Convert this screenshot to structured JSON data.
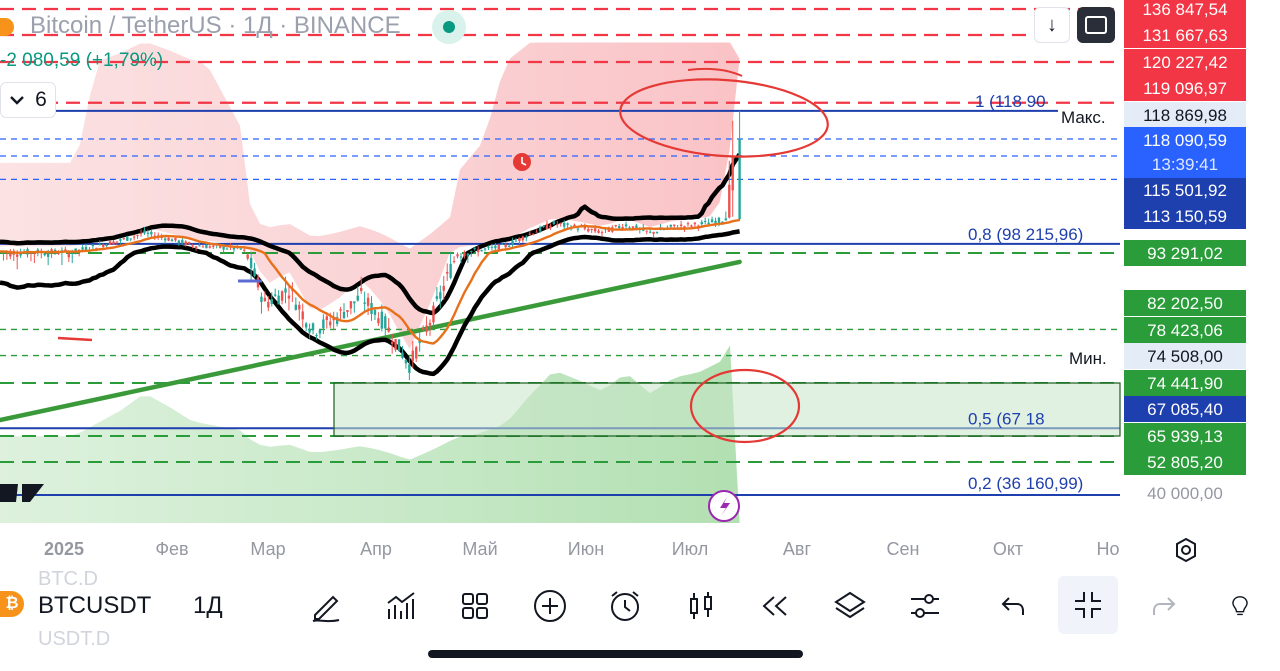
{
  "header": {
    "title": "Bitcoin / TetherUS · 1Д · BINANCE",
    "change": "-2 080,59 (+1,79%)",
    "indicators_count": "6"
  },
  "toolbar": {
    "symbol": "BTCUSDT",
    "interval": "1Д",
    "ghost_above": "BTC.D",
    "ghost_below": "USDT.D",
    "icons": [
      "pencil-icon",
      "chart-up-icon",
      "grid-icon",
      "plus-circle-icon",
      "alarm-icon",
      "candles-icon",
      "rewind-icon",
      "layers-icon",
      "sliders-icon",
      "undo-icon",
      "collapse-icon",
      "redo-icon",
      "bulb-icon"
    ]
  },
  "colors": {
    "red_level": "#f23645",
    "green_level": "#2a9d3a",
    "blue_fib": "#1e3fae",
    "candle_up": "#26a69a",
    "candle_down": "#ef5350",
    "ema": "#e8701a",
    "trend": "#3a9a3a"
  },
  "chart_data": {
    "type": "candlestick",
    "symbol": "BTCUSDT",
    "exchange": "BINANCE",
    "interval": "1Д",
    "x_labels": [
      "2025",
      "Фев",
      "Мар",
      "Апр",
      "Май",
      "Июн",
      "Июл",
      "Авг",
      "Сен",
      "Окт",
      "Но"
    ],
    "price_scale_labels": [
      "136 847,54",
      "131 667,63",
      "120 227,42",
      "119 096,97",
      "118 869,98",
      "118 090,59",
      "115 501,92",
      "113 150,59",
      "93 291,02",
      "82 202,50",
      "78 423,06",
      "74 508,00",
      "74 441,90",
      "67 085,40",
      "65 939,13",
      "52 805,20",
      "40 000,00"
    ],
    "countdown": "13:39:41",
    "max_label": "Макс.",
    "min_label": "Мин.",
    "fib_levels": [
      {
        "label": "1 (118 90"
      },
      {
        "label": "0,8 (98 215,96)"
      },
      {
        "label": "0,5 (67 18"
      },
      {
        "label": "0,2 (36 160,99)"
      }
    ],
    "red_levels": [
      136847.54,
      131667.63,
      120227.42,
      119096.97
    ],
    "green_levels": [
      93291.02,
      82202.5,
      78423.06,
      74441.9,
      65939.13,
      52805.2
    ],
    "current_price": 118090.59,
    "price_high": 118869.98,
    "price_low": 74508.0,
    "close_path": [
      [
        "2025-01-01",
        94000
      ],
      [
        "2025-01-08",
        97000
      ],
      [
        "2025-01-15",
        100000
      ],
      [
        "2025-01-22",
        104000
      ],
      [
        "2025-01-29",
        101000
      ],
      [
        "2025-02-05",
        97500
      ],
      [
        "2025-02-12",
        96500
      ],
      [
        "2025-02-19",
        95500
      ],
      [
        "2025-02-26",
        86000
      ],
      [
        "2025-03-05",
        88000
      ],
      [
        "2025-03-12",
        82000
      ],
      [
        "2025-03-19",
        84000
      ],
      [
        "2025-03-26",
        87000
      ],
      [
        "2025-04-02",
        83000
      ],
      [
        "2025-04-09",
        77000
      ],
      [
        "2025-04-16",
        84500
      ],
      [
        "2025-04-23",
        93500
      ],
      [
        "2025-04-30",
        95000
      ],
      [
        "2025-05-07",
        97000
      ],
      [
        "2025-05-14",
        103500
      ],
      [
        "2025-05-21",
        109000
      ],
      [
        "2025-05-28",
        107000
      ],
      [
        "2025-06-04",
        104500
      ],
      [
        "2025-06-11",
        108500
      ],
      [
        "2025-06-18",
        104000
      ],
      [
        "2025-06-25",
        107500
      ],
      [
        "2025-07-02",
        108500
      ],
      [
        "2025-07-09",
        111000
      ],
      [
        "2025-07-14",
        118090
      ]
    ]
  }
}
